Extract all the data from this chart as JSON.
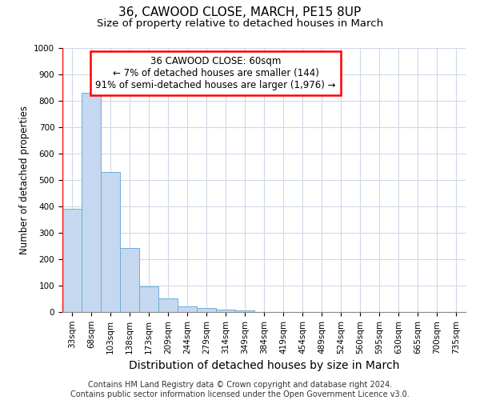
{
  "title": "36, CAWOOD CLOSE, MARCH, PE15 8UP",
  "subtitle": "Size of property relative to detached houses in March",
  "xlabel": "Distribution of detached houses by size in March",
  "ylabel": "Number of detached properties",
  "bar_labels": [
    "33sqm",
    "68sqm",
    "103sqm",
    "138sqm",
    "173sqm",
    "209sqm",
    "244sqm",
    "279sqm",
    "314sqm",
    "349sqm",
    "384sqm",
    "419sqm",
    "454sqm",
    "489sqm",
    "524sqm",
    "560sqm",
    "595sqm",
    "630sqm",
    "665sqm",
    "700sqm",
    "735sqm"
  ],
  "bar_values": [
    390,
    830,
    530,
    242,
    97,
    52,
    20,
    15,
    10,
    5,
    0,
    0,
    0,
    0,
    0,
    0,
    0,
    0,
    0,
    0,
    0
  ],
  "bar_color": "#c5d8f0",
  "bar_edge_color": "#6baed6",
  "annotation_box_text": "36 CAWOOD CLOSE: 60sqm\n← 7% of detached houses are smaller (144)\n91% of semi-detached houses are larger (1,976) →",
  "red_line_x": -0.5,
  "ylim": [
    0,
    1000
  ],
  "yticks": [
    0,
    100,
    200,
    300,
    400,
    500,
    600,
    700,
    800,
    900,
    1000
  ],
  "bg_color": "#ffffff",
  "plot_bg_color": "#ffffff",
  "grid_color": "#d0d8e8",
  "footer_line1": "Contains HM Land Registry data © Crown copyright and database right 2024.",
  "footer_line2": "Contains public sector information licensed under the Open Government Licence v3.0.",
  "title_fontsize": 11,
  "subtitle_fontsize": 9.5,
  "xlabel_fontsize": 10,
  "ylabel_fontsize": 8.5,
  "tick_fontsize": 7.5,
  "annotation_fontsize": 8.5,
  "footer_fontsize": 7
}
